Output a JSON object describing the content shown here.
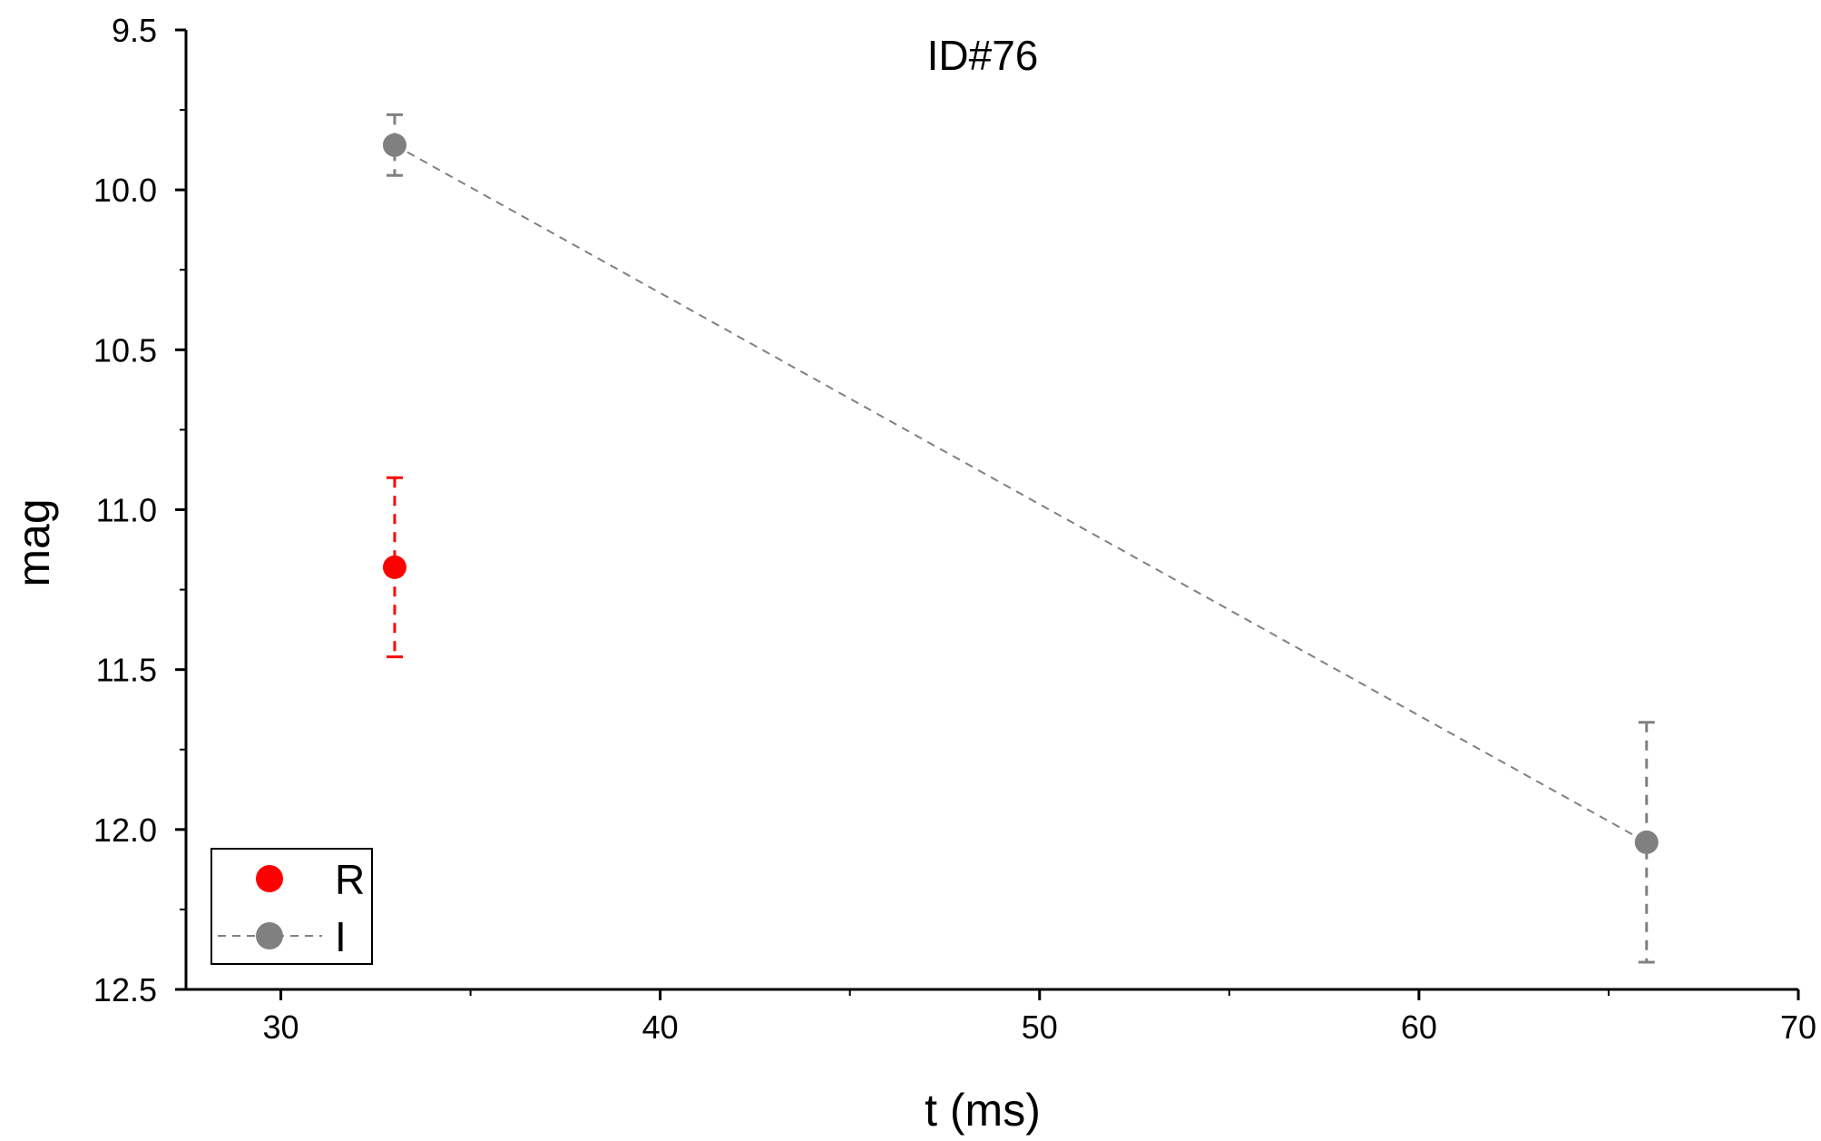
{
  "chart_data": {
    "type": "scatter",
    "title": "ID#76",
    "xlabel": "t (ms)",
    "ylabel": "mag",
    "xlim": [
      27.5,
      70
    ],
    "ylim": [
      9.5,
      12.5
    ],
    "y_inverted": true,
    "x_ticks": [
      30,
      40,
      50,
      60,
      70
    ],
    "y_ticks": [
      "9.5",
      "10.0",
      "10.5",
      "11.0",
      "11.5",
      "12.0",
      "12.5"
    ],
    "grid": false,
    "legend_position": "bottom-left",
    "series": [
      {
        "name": "R",
        "color": "#ff0000",
        "connect_line": false,
        "error_line": "dashed",
        "points": [
          {
            "x": 33,
            "y": 11.18,
            "err": 0.28
          }
        ]
      },
      {
        "name": "I",
        "color": "#808080",
        "connect_line": true,
        "line_style": "dashed",
        "error_line": "dashed",
        "points": [
          {
            "x": 33,
            "y": 9.86,
            "err": 0.095
          },
          {
            "x": 66,
            "y": 12.04,
            "err": 0.375
          }
        ]
      }
    ]
  }
}
